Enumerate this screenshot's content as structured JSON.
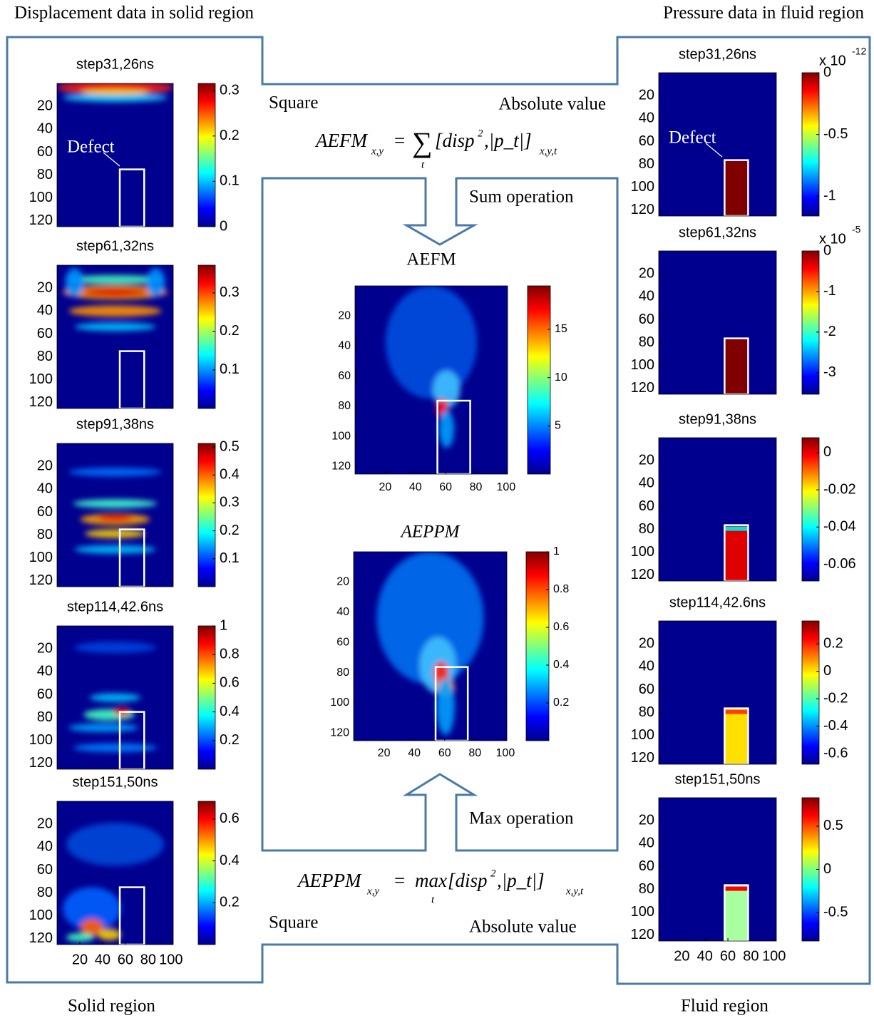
{
  "header": {
    "left": "Displacement data in solid region",
    "right": "Pressure data in fluid region"
  },
  "footer": {
    "left": "Solid region",
    "right": "Fluid region"
  },
  "annotations": {
    "square_top": "Square",
    "absolute_top": "Absolute value",
    "sum_operation": "Sum  operation",
    "max_operation": "Max operation",
    "square_bottom": "Square",
    "absolute_bottom": "Absolute value",
    "defect_labels": [
      "Defect",
      "Defect"
    ]
  },
  "equations": {
    "aefm": {
      "lhs": "AEFM",
      "lhs_sub": "x,y",
      "eq": "=",
      "operator": "∑",
      "operator_sub": "t",
      "body": "[disp",
      "sup": "2",
      "body_end": ",|p_t|]",
      "sub": "x,y,t"
    },
    "aeppm": {
      "lhs": "AEPPM",
      "lhs_sub": "x,y",
      "eq": "=",
      "operator": "max",
      "operator_sub": "t",
      "body": "[disp",
      "sup": "2",
      "body_end": ",|p_t|]",
      "sub": "x,y,t"
    }
  },
  "solid_panels": [
    {
      "title": "step31,26ns",
      "yticks": [
        20,
        40,
        60,
        80,
        100,
        120
      ],
      "ylim": [
        0,
        125
      ],
      "cbar_ticks": [
        0.3,
        0.2,
        0.1,
        0
      ],
      "clim": [
        0,
        0.316
      ]
    },
    {
      "title": "step61,32ns",
      "yticks": [
        20,
        40,
        60,
        80,
        100,
        120
      ],
      "ylim": [
        0,
        125
      ],
      "cbar_ticks": [
        0.3,
        0.2,
        0.1
      ],
      "clim": [
        0,
        0.372
      ]
    },
    {
      "title": "step91,38ns",
      "yticks": [
        20,
        40,
        60,
        80,
        100,
        120
      ],
      "ylim": [
        0,
        125
      ],
      "cbar_ticks": [
        0.5,
        0.4,
        0.3,
        0.2,
        0.1
      ],
      "clim": [
        0,
        0.513
      ]
    },
    {
      "title": "step114,42.6ns",
      "yticks": [
        20,
        40,
        60,
        80,
        100,
        120
      ],
      "ylim": [
        0,
        125
      ],
      "cbar_ticks": [
        1,
        0.8,
        0.6,
        0.4,
        0.2
      ],
      "clim": [
        0,
        1
      ]
    },
    {
      "title": "step151,50ns",
      "yticks": [
        20,
        40,
        60,
        80,
        100,
        120
      ],
      "ylim": [
        0,
        125
      ],
      "xticks": [
        20,
        40,
        60,
        80,
        100
      ],
      "xlim": [
        0,
        102
      ],
      "cbar_ticks": [
        0.6,
        0.4,
        0.2
      ],
      "clim": [
        0,
        0.685
      ]
    }
  ],
  "fluid_panels": [
    {
      "title": "step31,26ns",
      "yticks": [
        20,
        40,
        60,
        80,
        100,
        120
      ],
      "ylim": [
        0,
        125
      ],
      "cbar_ticks": [
        0,
        -0.5,
        -1
      ],
      "clim": [
        -1.16,
        0
      ],
      "exponent": {
        "base": "x 10",
        "power": "-12"
      }
    },
    {
      "title": "step61,32ns",
      "yticks": [
        20,
        40,
        60,
        80,
        100,
        120
      ],
      "ylim": [
        0,
        125
      ],
      "cbar_ticks": [
        0,
        -1,
        -2,
        -3
      ],
      "clim": [
        -3.53,
        0
      ],
      "exponent": {
        "base": "x 10",
        "power": "-5"
      }
    },
    {
      "title": "step91,38ns",
      "yticks": [
        20,
        40,
        60,
        80,
        100,
        120
      ],
      "ylim": [
        0,
        125
      ],
      "cbar_ticks": [
        0,
        -0.02,
        -0.04,
        -0.06
      ],
      "clim": [
        -0.069,
        0.008
      ]
    },
    {
      "title": "step114,42.6ns",
      "yticks": [
        20,
        40,
        60,
        80,
        100,
        120
      ],
      "ylim": [
        0,
        125
      ],
      "cbar_ticks": [
        0.2,
        0,
        -0.2,
        -0.4,
        -0.6
      ],
      "clim": [
        -0.677,
        0.367
      ]
    },
    {
      "title": "step151,50ns",
      "yticks": [
        20,
        40,
        60,
        80,
        100,
        120
      ],
      "ylim": [
        0,
        125
      ],
      "xticks": [
        20,
        40,
        60,
        80,
        100
      ],
      "xlim": [
        0,
        102
      ],
      "cbar_ticks": [
        0.5,
        0,
        -0.5
      ],
      "clim": [
        -0.83,
        0.83
      ]
    }
  ],
  "center_panels": [
    {
      "title": "AEFM",
      "yticks": [
        20,
        40,
        60,
        80,
        100,
        120
      ],
      "ylim": [
        0,
        125
      ],
      "xticks": [
        20,
        40,
        60,
        80,
        100
      ],
      "xlim": [
        0,
        101
      ],
      "cbar_ticks": [
        15,
        10,
        5
      ],
      "clim": [
        0,
        19.5
      ]
    },
    {
      "title": "AEPPM",
      "yticks": [
        20,
        40,
        60,
        80,
        100,
        120
      ],
      "ylim": [
        0,
        125
      ],
      "xticks": [
        20,
        40,
        60,
        80,
        100
      ],
      "xlim": [
        0,
        101
      ],
      "cbar_ticks": [
        1,
        0.8,
        0.6,
        0.4,
        0.2
      ],
      "clim": [
        0,
        1
      ]
    }
  ]
}
